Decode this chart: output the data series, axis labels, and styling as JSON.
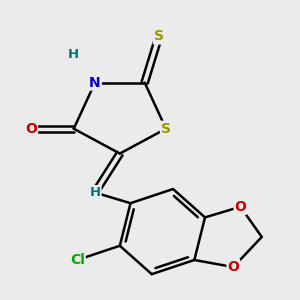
{
  "bg_color": "#ebebeb",
  "bond_color": "#000000",
  "atom_colors": {
    "S": "#999900",
    "N": "#0000cc",
    "O": "#cc0000",
    "Cl": "#00aa00",
    "C": "#000000",
    "H": "#007777"
  },
  "bond_width": 1.8,
  "fig_width": 3.0,
  "fig_height": 3.0,
  "dpi": 100
}
